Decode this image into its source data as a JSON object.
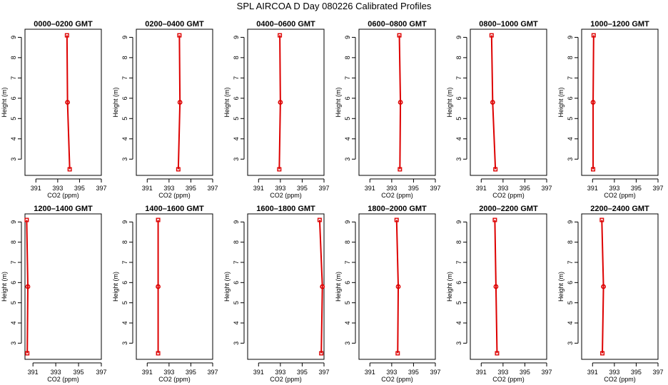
{
  "title": "SPL AIRCOA D  Day 080226  Calibrated Profiles",
  "chart_data": [
    {
      "type": "line",
      "title": "0000–0200 GMT",
      "xlabel": "CO2 (ppm)",
      "ylabel": "Height (m)",
      "xlim": [
        390,
        397
      ],
      "ylim": [
        2.2,
        9.4
      ],
      "xticks": [
        391,
        393,
        395,
        397
      ],
      "yticks": [
        3,
        4,
        5,
        6,
        7,
        8,
        9
      ],
      "heights": [
        2.5,
        5.8,
        9.1
      ],
      "values": [
        394.1,
        393.9,
        393.85
      ]
    },
    {
      "type": "line",
      "title": "0200–0400 GMT",
      "xlabel": "CO2 (ppm)",
      "ylabel": "Height (m)",
      "xlim": [
        390,
        397
      ],
      "ylim": [
        2.2,
        9.4
      ],
      "xticks": [
        391,
        393,
        395,
        397
      ],
      "yticks": [
        3,
        4,
        5,
        6,
        7,
        8,
        9
      ],
      "heights": [
        2.5,
        5.8,
        9.1
      ],
      "values": [
        393.85,
        394.0,
        393.95
      ]
    },
    {
      "type": "line",
      "title": "0400–0600 GMT",
      "xlabel": "CO2 (ppm)",
      "ylabel": "Height (m)",
      "xlim": [
        390,
        397
      ],
      "ylim": [
        2.2,
        9.4
      ],
      "xticks": [
        391,
        393,
        395,
        397
      ],
      "yticks": [
        3,
        4,
        5,
        6,
        7,
        8,
        9
      ],
      "heights": [
        2.5,
        5.8,
        9.1
      ],
      "values": [
        392.9,
        393.0,
        392.95
      ]
    },
    {
      "type": "line",
      "title": "0600–0800 GMT",
      "xlabel": "CO2 (ppm)",
      "ylabel": "Height (m)",
      "xlim": [
        390,
        397
      ],
      "ylim": [
        2.2,
        9.4
      ],
      "xticks": [
        391,
        393,
        395,
        397
      ],
      "yticks": [
        3,
        4,
        5,
        6,
        7,
        8,
        9
      ],
      "heights": [
        2.5,
        5.8,
        9.1
      ],
      "values": [
        393.75,
        393.8,
        393.7
      ]
    },
    {
      "type": "line",
      "title": "0800–1000 GMT",
      "xlabel": "CO2 (ppm)",
      "ylabel": "Height (m)",
      "xlim": [
        390,
        397
      ],
      "ylim": [
        2.2,
        9.4
      ],
      "xticks": [
        391,
        393,
        395,
        397
      ],
      "yticks": [
        3,
        4,
        5,
        6,
        7,
        8,
        9
      ],
      "heights": [
        2.5,
        5.8,
        9.1
      ],
      "values": [
        392.3,
        392.05,
        391.95
      ]
    },
    {
      "type": "line",
      "title": "1000–1200 GMT",
      "xlabel": "CO2 (ppm)",
      "ylabel": "Height (m)",
      "xlim": [
        390,
        397
      ],
      "ylim": [
        2.2,
        9.4
      ],
      "xticks": [
        391,
        393,
        395,
        397
      ],
      "yticks": [
        3,
        4,
        5,
        6,
        7,
        8,
        9
      ],
      "heights": [
        2.5,
        5.8,
        9.1
      ],
      "values": [
        391.05,
        391.05,
        391.1
      ]
    },
    {
      "type": "line",
      "title": "1200–1400 GMT",
      "xlabel": "CO2 (ppm)",
      "ylabel": "Height (m)",
      "xlim": [
        390.3,
        397
      ],
      "ylim": [
        2.2,
        9.4
      ],
      "xticks": [
        391,
        393,
        395,
        397
      ],
      "yticks": [
        3,
        4,
        5,
        6,
        7,
        8,
        9
      ],
      "heights": [
        2.5,
        5.8,
        9.1
      ],
      "values": [
        390.5,
        390.55,
        390.45
      ]
    },
    {
      "type": "line",
      "title": "1400–1600 GMT",
      "xlabel": "CO2 (ppm)",
      "ylabel": "Height (m)",
      "xlim": [
        390,
        397
      ],
      "ylim": [
        2.2,
        9.4
      ],
      "xticks": [
        391,
        393,
        395,
        397
      ],
      "yticks": [
        3,
        4,
        5,
        6,
        7,
        8,
        9
      ],
      "heights": [
        2.5,
        5.8,
        9.1
      ],
      "values": [
        392.0,
        392.0,
        392.0
      ]
    },
    {
      "type": "line",
      "title": "1600–1800 GMT",
      "xlabel": "CO2 (ppm)",
      "ylabel": "Height (m)",
      "xlim": [
        390,
        397
      ],
      "ylim": [
        2.2,
        9.4
      ],
      "xticks": [
        391,
        393,
        395,
        397
      ],
      "yticks": [
        3,
        4,
        5,
        6,
        7,
        8,
        9
      ],
      "heights": [
        2.5,
        5.8,
        9.1
      ],
      "values": [
        396.75,
        396.85,
        396.6
      ]
    },
    {
      "type": "line",
      "title": "1800–2000 GMT",
      "xlabel": "CO2 (ppm)",
      "ylabel": "Height (m)",
      "xlim": [
        390,
        397
      ],
      "ylim": [
        2.2,
        9.4
      ],
      "xticks": [
        391,
        393,
        395,
        397
      ],
      "yticks": [
        3,
        4,
        5,
        6,
        7,
        8,
        9
      ],
      "heights": [
        2.5,
        5.8,
        9.1
      ],
      "values": [
        393.55,
        393.6,
        393.45
      ]
    },
    {
      "type": "line",
      "title": "2000–2200 GMT",
      "xlabel": "CO2 (ppm)",
      "ylabel": "Height (m)",
      "xlim": [
        390,
        397
      ],
      "ylim": [
        2.2,
        9.4
      ],
      "xticks": [
        391,
        393,
        395,
        397
      ],
      "yticks": [
        3,
        4,
        5,
        6,
        7,
        8,
        9
      ],
      "heights": [
        2.5,
        5.8,
        9.1
      ],
      "values": [
        392.45,
        392.35,
        392.25
      ]
    },
    {
      "type": "line",
      "title": "2200–2400 GMT",
      "xlabel": "CO2 (ppm)",
      "ylabel": "Height (m)",
      "xlim": [
        390,
        397
      ],
      "ylim": [
        2.2,
        9.4
      ],
      "xticks": [
        391,
        393,
        395,
        397
      ],
      "yticks": [
        3,
        4,
        5,
        6,
        7,
        8,
        9
      ],
      "heights": [
        2.5,
        5.8,
        9.1
      ],
      "values": [
        391.9,
        392.0,
        391.85
      ]
    }
  ],
  "colors": {
    "profile": "#dd0000",
    "axis": "#000000"
  }
}
